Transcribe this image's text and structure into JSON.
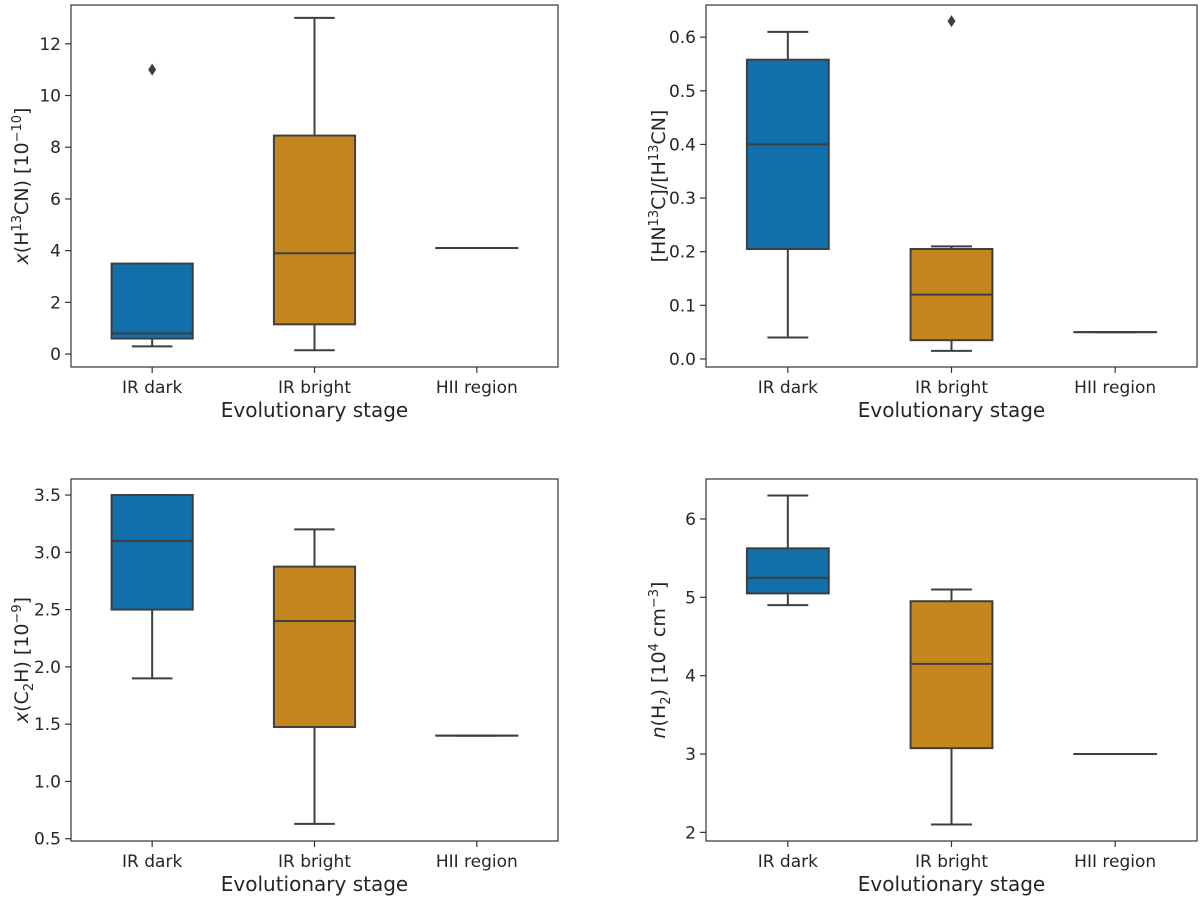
{
  "colors": {
    "ir_dark": "#1170aa",
    "ir_bright": "#c4871f",
    "hii_region": "#1e9e5a",
    "line": "#3f3f3f",
    "frame": "#333333"
  },
  "chart_data": [
    {
      "type": "box",
      "id": "h13cn",
      "xlabel": "Evolutionary stage",
      "ylabel": {
        "prefix": "x",
        "body": "(H",
        "sup": "13",
        "rest": "CN) [10",
        "sup2": "−10",
        "end": "]"
      },
      "ylim": [
        -0.5,
        13.5
      ],
      "yticks": [
        0,
        2,
        4,
        6,
        8,
        10,
        12
      ],
      "categories": [
        "IR dark",
        "IR bright",
        "HII region"
      ],
      "boxes": [
        {
          "category": "IR dark",
          "whislo": 0.3,
          "q1": 0.6,
          "med": 0.8,
          "q3": 3.5,
          "whishi": 3.5,
          "fliers": [
            11
          ]
        },
        {
          "category": "IR bright",
          "whislo": 0.15,
          "q1": 1.15,
          "med": 3.9,
          "q3": 8.45,
          "whishi": 13.0,
          "fliers": []
        },
        {
          "category": "HII region",
          "whislo": 4.1,
          "q1": 4.1,
          "med": 4.1,
          "q3": 4.1,
          "whishi": 4.1,
          "fliers": []
        }
      ]
    },
    {
      "type": "box",
      "id": "ratio",
      "xlabel": "Evolutionary stage",
      "ylabel": {
        "text": "[HN",
        "sup": "13",
        "rest": "C]/[H",
        "sup2": "13",
        "end": "CN]"
      },
      "ylim": [
        -0.015,
        0.66
      ],
      "yticks": [
        0.0,
        0.1,
        0.2,
        0.3,
        0.4,
        0.5,
        0.6
      ],
      "ytick_labels": [
        "0.0",
        "0.1",
        "0.2",
        "0.3",
        "0.4",
        "0.5",
        "0.6"
      ],
      "categories": [
        "IR dark",
        "IR bright",
        "HII region"
      ],
      "boxes": [
        {
          "category": "IR dark",
          "whislo": 0.04,
          "q1": 0.205,
          "med": 0.4,
          "q3": 0.558,
          "whishi": 0.61,
          "fliers": []
        },
        {
          "category": "IR bright",
          "whislo": 0.015,
          "q1": 0.035,
          "med": 0.12,
          "q3": 0.205,
          "whishi": 0.21,
          "fliers": [
            0.63
          ]
        },
        {
          "category": "HII region",
          "whislo": 0.05,
          "q1": 0.05,
          "med": 0.05,
          "q3": 0.05,
          "whishi": 0.05,
          "fliers": []
        }
      ]
    },
    {
      "type": "box",
      "id": "c2h",
      "xlabel": "Evolutionary stage",
      "ylabel": {
        "prefix": "x",
        "body": "(C",
        "sub": "2",
        "rest": "H) [10",
        "sup2": "−9",
        "end": "]"
      },
      "ylim": [
        0.48,
        3.64
      ],
      "yticks": [
        0.5,
        1.0,
        1.5,
        2.0,
        2.5,
        3.0,
        3.5
      ],
      "ytick_labels": [
        "0.5",
        "1.0",
        "1.5",
        "2.0",
        "2.5",
        "3.0",
        "3.5"
      ],
      "categories": [
        "IR dark",
        "IR bright",
        "HII region"
      ],
      "boxes": [
        {
          "category": "IR dark",
          "whislo": 1.9,
          "q1": 2.5,
          "med": 3.1,
          "q3": 3.5,
          "whishi": 3.5,
          "fliers": []
        },
        {
          "category": "IR bright",
          "whislo": 0.63,
          "q1": 1.475,
          "med": 2.4,
          "q3": 2.875,
          "whishi": 3.2,
          "fliers": []
        },
        {
          "category": "HII region",
          "whislo": 1.4,
          "q1": 1.4,
          "med": 1.4,
          "q3": 1.4,
          "whishi": 1.4,
          "fliers": []
        }
      ]
    },
    {
      "type": "box",
      "id": "nh2",
      "xlabel": "Evolutionary stage",
      "ylabel": {
        "prefix": "n",
        "body": "(H",
        "sub": "2",
        "rest": ") [10",
        "sup2": "4",
        "mid": " cm",
        "sup3": "−3",
        "end": "]"
      },
      "ylim": [
        1.89,
        6.51
      ],
      "yticks": [
        2,
        3,
        4,
        5,
        6
      ],
      "categories": [
        "IR dark",
        "IR bright",
        "HII region"
      ],
      "boxes": [
        {
          "category": "IR dark",
          "whislo": 4.9,
          "q1": 5.05,
          "med": 5.25,
          "q3": 5.625,
          "whishi": 6.3,
          "fliers": []
        },
        {
          "category": "IR bright",
          "whislo": 2.1,
          "q1": 3.075,
          "med": 4.15,
          "q3": 4.95,
          "whishi": 5.1,
          "fliers": []
        },
        {
          "category": "HII region",
          "whislo": 3.0,
          "q1": 3.0,
          "med": 3.0,
          "q3": 3.0,
          "whishi": 3.0,
          "fliers": []
        }
      ]
    }
  ]
}
